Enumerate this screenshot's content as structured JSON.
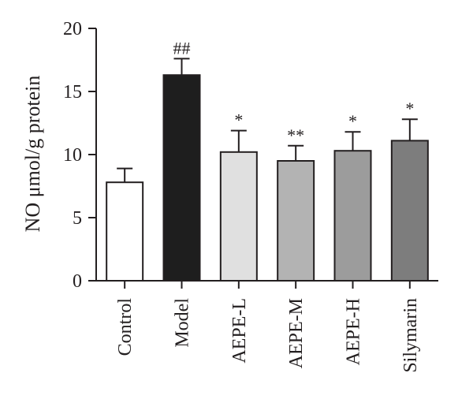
{
  "chart_data": {
    "type": "bar",
    "title": "",
    "xlabel": "",
    "ylabel": "NO μmol/g protein",
    "ylim": [
      0,
      20
    ],
    "yticks": [
      0,
      5,
      10,
      15,
      20
    ],
    "grid": false,
    "categories": [
      "Control",
      "Model",
      "AEPE-L",
      "AEPE-M",
      "AEPE-H",
      "Silymarin"
    ],
    "values": [
      7.8,
      16.3,
      10.2,
      9.5,
      10.3,
      11.1
    ],
    "errors": [
      1.1,
      1.3,
      1.7,
      1.2,
      1.5,
      1.7
    ],
    "annotations": [
      "",
      "##",
      "*",
      "**",
      "*",
      "*"
    ],
    "bar_colors": [
      "#ffffff",
      "#1e1e1e",
      "#e0e0e0",
      "#b3b3b3",
      "#9c9c9c",
      "#7d7d7d"
    ],
    "edge_color": "#231f20"
  }
}
